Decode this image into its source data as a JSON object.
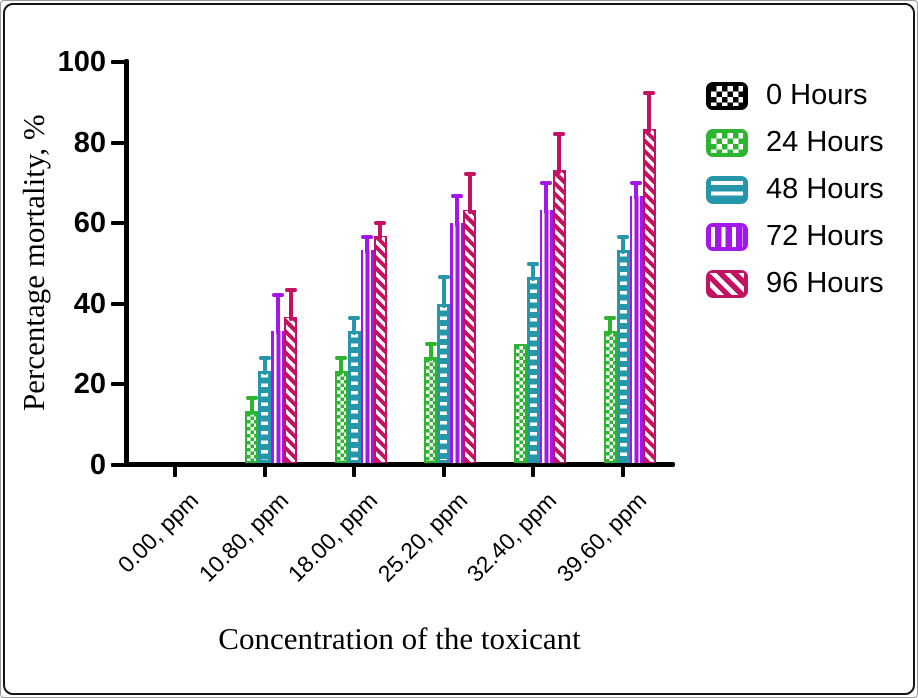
{
  "figure": {
    "background": "#ffffff",
    "border_color": "#161616"
  },
  "chart_data": {
    "type": "bar",
    "title": "",
    "xlabel": "Concentration of the toxicant",
    "ylabel": "Percentage mortality, %",
    "ylim": [
      0,
      100
    ],
    "y_ticks": [
      0,
      20,
      40,
      60,
      80,
      100
    ],
    "grid": false,
    "legend_position": "right",
    "error_bars": "upper",
    "categories": [
      "0.00, ppm",
      "10.80, ppm",
      "18.00, ppm",
      "25.20, ppm",
      "32.40, ppm",
      "39.60, ppm"
    ],
    "series": [
      {
        "name": "0 Hours",
        "color": "#000000",
        "pattern": "checker",
        "values": [
          0,
          0,
          0,
          0,
          0,
          0
        ],
        "errors": [
          0,
          0,
          0,
          0,
          0,
          0
        ]
      },
      {
        "name": "24 Hours",
        "color": "#2db430",
        "pattern": "checker",
        "values": [
          0,
          13.3,
          23.3,
          26.7,
          30.0,
          33.3
        ],
        "errors": [
          0,
          3.3,
          3.3,
          3.3,
          0,
          3.3
        ]
      },
      {
        "name": "48 Hours",
        "color": "#2697aa",
        "pattern": "hstripe",
        "values": [
          0,
          23.3,
          33.3,
          40.0,
          46.7,
          53.3
        ],
        "errors": [
          0,
          3.3,
          3.3,
          6.7,
          3.3,
          3.3
        ]
      },
      {
        "name": "72 Hours",
        "color": "#a417ea",
        "pattern": "vstripe",
        "values": [
          0,
          33.3,
          53.3,
          60.0,
          63.3,
          66.7
        ],
        "errors": [
          0,
          8.9,
          3.3,
          6.7,
          6.7,
          3.3
        ]
      },
      {
        "name": "96 Hours",
        "color": "#c31262",
        "pattern": "dstripe",
        "values": [
          0,
          36.7,
          56.7,
          63.3,
          73.3,
          83.3
        ],
        "errors": [
          0,
          6.7,
          3.3,
          8.9,
          8.9,
          8.9
        ]
      }
    ]
  }
}
